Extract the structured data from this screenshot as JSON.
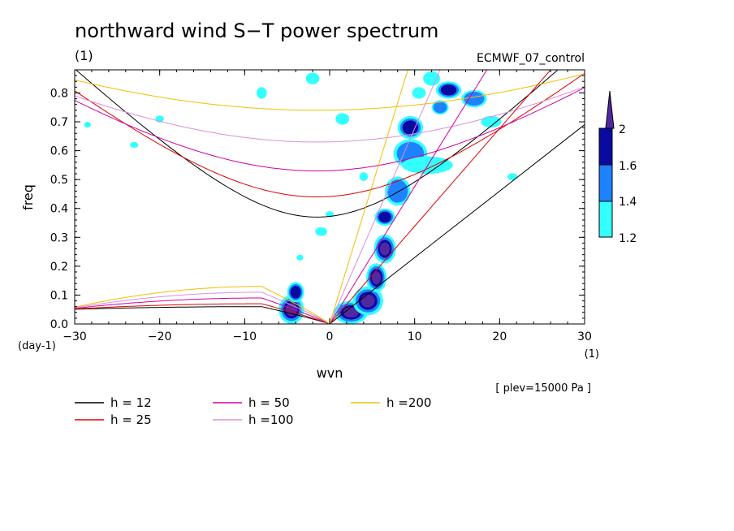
{
  "title": "northward wind S−T power spectrum",
  "subtitle": "(1)",
  "experiment": "ECMWF_07_control",
  "xunit": "(1)",
  "yunit": "(day-1)",
  "note": "[ plev=15000 Pa ]",
  "colors": {
    "shade_low": "#33ffff",
    "shade_mid": "#1e82ff",
    "shade_high": "#0a0aa0",
    "shade_top": "#5028a0",
    "h12": "#000000",
    "h25": "#e00000",
    "h50": "#d000a0",
    "h100": "#d890d8",
    "h200": "#f0c000"
  },
  "colorbar": {
    "labels": [
      "2",
      "1.6",
      "1.4",
      "1.2"
    ]
  },
  "legend": [
    {
      "label": "h = 12",
      "color": "#000000"
    },
    {
      "label": "h = 50",
      "color": "#d000a0"
    },
    {
      "label": "h =200",
      "color": "#f0c000"
    },
    {
      "label": "h = 25",
      "color": "#e00000"
    },
    {
      "label": "h =100",
      "color": "#d890d8"
    }
  ],
  "chart_data": {
    "type": "heatmap",
    "title": "northward wind S−T power spectrum",
    "xlabel": "wvn",
    "ylabel": "freq",
    "xlim": [
      -30,
      30
    ],
    "ylim": [
      0,
      0.88
    ],
    "xticks": [
      -30,
      -20,
      -10,
      0,
      10,
      20,
      30
    ],
    "yticks": [
      0.0,
      0.1,
      0.2,
      0.3,
      0.4,
      0.5,
      0.6,
      0.7,
      0.8
    ],
    "ytick_labels": [
      "0.0",
      "0.1",
      "0.2",
      "0.3",
      "0.4",
      "0.5",
      "0.6",
      "0.7",
      "0.8"
    ],
    "contour_levels": [
      1.2,
      1.4,
      1.6,
      2
    ],
    "equivalent_depths_m": [
      12,
      25,
      50,
      100,
      200
    ],
    "dispersion_curves": [
      {
        "h": 12,
        "color": "#000000",
        "y_at_k0": 0.37
      },
      {
        "h": 25,
        "color": "#e00000",
        "y_at_k0": 0.44
      },
      {
        "h": 50,
        "color": "#d000a0",
        "y_at_k0": 0.53
      },
      {
        "h": 100,
        "color": "#d890d8",
        "y_at_k0": 0.63
      },
      {
        "h": 200,
        "color": "#f0c000",
        "y_at_k0": 0.74
      }
    ],
    "kelvin_lines": [
      {
        "h": 12,
        "color": "#000000",
        "x": [
          0,
          30
        ],
        "y": [
          0,
          0.69
        ]
      },
      {
        "h": 25,
        "color": "#e00000",
        "x": [
          0,
          26
        ],
        "y": [
          0,
          0.88
        ]
      },
      {
        "h": 50,
        "color": "#d000a0",
        "x": [
          0,
          18.5
        ],
        "y": [
          0,
          0.88
        ]
      },
      {
        "h": 100,
        "color": "#d890d8",
        "x": [
          0,
          13
        ],
        "y": [
          0,
          0.88
        ]
      },
      {
        "h": 200,
        "color": "#f0c000",
        "x": [
          0,
          9.2
        ],
        "y": [
          0,
          0.88
        ]
      }
    ],
    "power_patches": [
      {
        "x": -4.5,
        "y": 0.05,
        "rx": 1.5,
        "ry": 0.05,
        "level": 2
      },
      {
        "x": -4.0,
        "y": 0.11,
        "rx": 1.0,
        "ry": 0.035,
        "level": 1.6
      },
      {
        "x": 2.5,
        "y": 0.04,
        "rx": 2.0,
        "ry": 0.04,
        "level": 2
      },
      {
        "x": 4.5,
        "y": 0.08,
        "rx": 1.8,
        "ry": 0.05,
        "level": 2
      },
      {
        "x": 5.5,
        "y": 0.16,
        "rx": 1.2,
        "ry": 0.05,
        "level": 2
      },
      {
        "x": 6.5,
        "y": 0.26,
        "rx": 1.3,
        "ry": 0.05,
        "level": 2
      },
      {
        "x": 6.5,
        "y": 0.37,
        "rx": 1.2,
        "ry": 0.03,
        "level": 1.6
      },
      {
        "x": 8.0,
        "y": 0.46,
        "rx": 1.5,
        "ry": 0.05,
        "level": 1.4
      },
      {
        "x": 9.5,
        "y": 0.59,
        "rx": 2.0,
        "ry": 0.05,
        "level": 1.4
      },
      {
        "x": 9.5,
        "y": 0.68,
        "rx": 1.5,
        "ry": 0.04,
        "level": 1.6
      },
      {
        "x": 11.5,
        "y": 0.55,
        "rx": 3.0,
        "ry": 0.03,
        "level": 1.2
      },
      {
        "x": 14.0,
        "y": 0.81,
        "rx": 1.5,
        "ry": 0.03,
        "level": 1.6
      },
      {
        "x": 13.0,
        "y": 0.75,
        "rx": 1.0,
        "ry": 0.025,
        "level": 1.4
      },
      {
        "x": 12.0,
        "y": 0.85,
        "rx": 1.0,
        "ry": 0.025,
        "level": 1.2
      },
      {
        "x": 17.0,
        "y": 0.78,
        "rx": 1.5,
        "ry": 0.03,
        "level": 1.4
      },
      {
        "x": 19.0,
        "y": 0.7,
        "rx": 1.2,
        "ry": 0.02,
        "level": 1.2
      },
      {
        "x": 10.5,
        "y": 0.8,
        "rx": 0.8,
        "ry": 0.02,
        "level": 1.2
      },
      {
        "x": -8.0,
        "y": 0.8,
        "rx": 0.6,
        "ry": 0.02,
        "level": 1.2
      },
      {
        "x": -2.0,
        "y": 0.85,
        "rx": 0.8,
        "ry": 0.02,
        "level": 1.2
      },
      {
        "x": 1.5,
        "y": 0.71,
        "rx": 0.8,
        "ry": 0.02,
        "level": 1.2
      },
      {
        "x": -20.0,
        "y": 0.71,
        "rx": 0.5,
        "ry": 0.012,
        "level": 1.2
      },
      {
        "x": 0.0,
        "y": 0.38,
        "rx": 0.5,
        "ry": 0.01,
        "level": 1.2
      },
      {
        "x": -1.0,
        "y": 0.32,
        "rx": 0.7,
        "ry": 0.015,
        "level": 1.2
      },
      {
        "x": -3.5,
        "y": 0.23,
        "rx": 0.4,
        "ry": 0.01,
        "level": 1.2
      },
      {
        "x": -28.5,
        "y": 0.69,
        "rx": 0.4,
        "ry": 0.01,
        "level": 1.2
      },
      {
        "x": -23.0,
        "y": 0.62,
        "rx": 0.5,
        "ry": 0.01,
        "level": 1.2
      },
      {
        "x": 4.0,
        "y": 0.51,
        "rx": 0.5,
        "ry": 0.015,
        "level": 1.2
      },
      {
        "x": 21.5,
        "y": 0.51,
        "rx": 0.6,
        "ry": 0.012,
        "level": 1.2
      }
    ]
  }
}
